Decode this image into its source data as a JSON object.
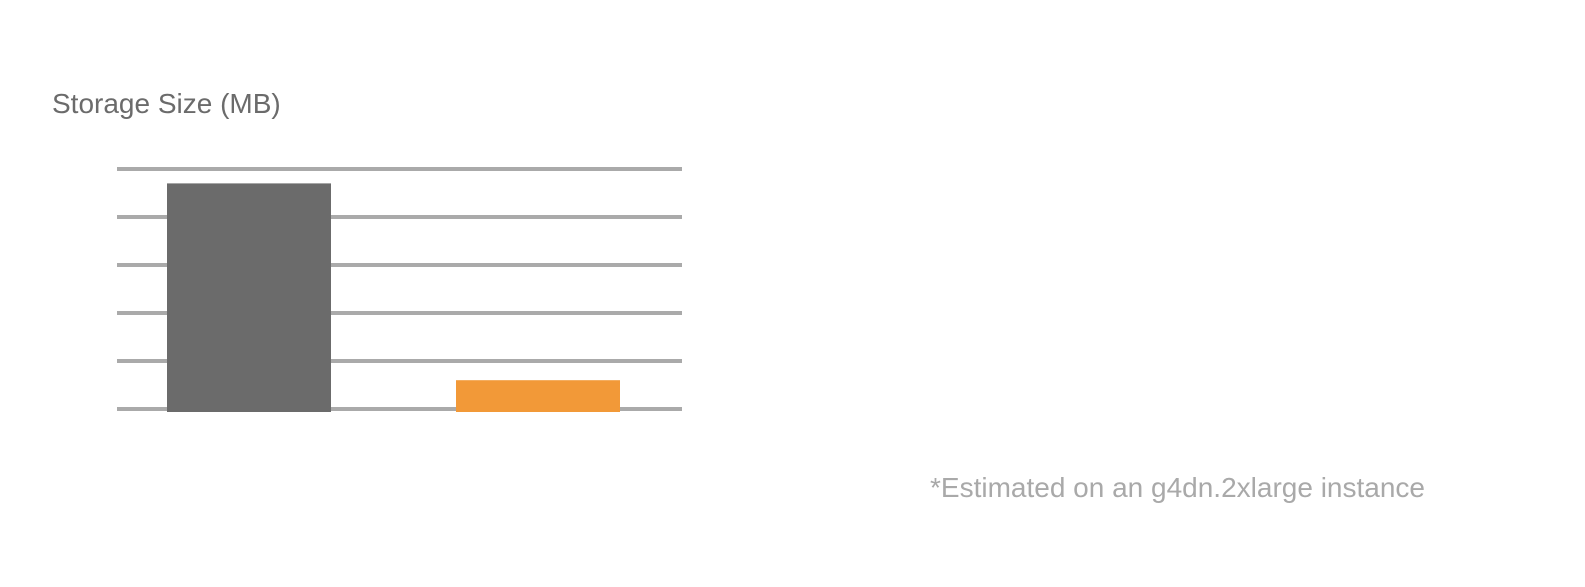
{
  "colors": {
    "grid": "#aaaaaa",
    "title": "#6b6b6b",
    "footnote": "#a9a9a9"
  },
  "chart_data": {
    "type": "bar",
    "title": "Storage Size (MB)",
    "xlabel": "",
    "ylabel": "",
    "ylim": [
      0,
      5
    ],
    "grid": true,
    "categories": [
      "",
      ""
    ],
    "values": [
      4.7,
      0.6
    ],
    "bar_colors": [
      "#6b6b6b",
      "#f29938"
    ]
  },
  "footnote": "*Estimated on an g4dn.2xlarge instance"
}
